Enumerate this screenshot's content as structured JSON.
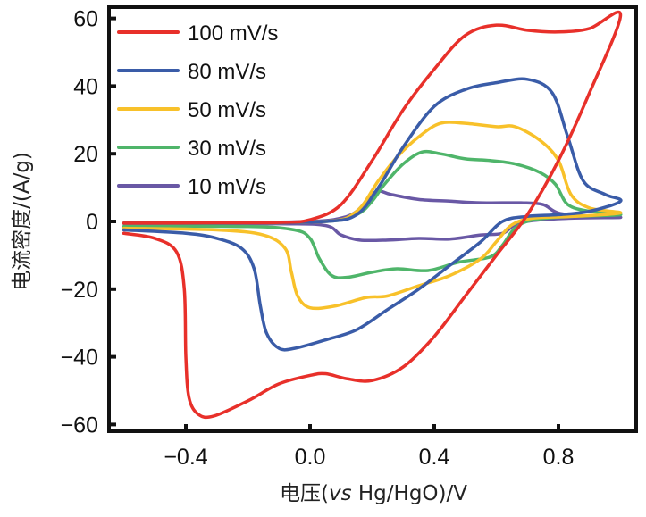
{
  "chart_data": {
    "type": "line",
    "title": "",
    "xlabel_parts": [
      "电压(",
      "vs",
      " Hg/HgO)/V"
    ],
    "xlabel": "电压(vs Hg/HgO)/V",
    "ylabel": "电流密度/(A/g)",
    "xlim": [
      -0.63,
      1.05
    ],
    "ylim": [
      -62,
      63
    ],
    "xticks": [
      -0.4,
      0.0,
      0.4,
      0.8
    ],
    "xtick_labels": [
      "−0.4",
      "0.0",
      "0.4",
      "0.8"
    ],
    "yticks": [
      -60,
      -40,
      -20,
      0,
      20,
      40,
      60
    ],
    "ytick_labels": [
      "−60",
      "−40",
      "−20",
      "0",
      "20",
      "40",
      "60"
    ],
    "grid": false,
    "legend_position": "top-left",
    "series": [
      {
        "name": "100 mV/s",
        "color": "#e8302a",
        "points": [
          [
            -0.6,
            -3.5
          ],
          [
            -0.5,
            -5
          ],
          [
            -0.43,
            -9
          ],
          [
            -0.405,
            -20
          ],
          [
            -0.4,
            -40
          ],
          [
            -0.39,
            -52
          ],
          [
            -0.36,
            -57
          ],
          [
            -0.31,
            -57.5
          ],
          [
            -0.2,
            -53
          ],
          [
            -0.1,
            -48
          ],
          [
            0.0,
            -45.5
          ],
          [
            0.05,
            -45
          ],
          [
            0.12,
            -46.5
          ],
          [
            0.2,
            -47
          ],
          [
            0.3,
            -43
          ],
          [
            0.4,
            -34
          ],
          [
            0.5,
            -22
          ],
          [
            0.6,
            -10
          ],
          [
            0.7,
            2
          ],
          [
            0.8,
            18
          ],
          [
            0.9,
            38
          ],
          [
            1.0,
            61
          ],
          [
            0.9,
            57
          ],
          [
            0.8,
            56
          ],
          [
            0.7,
            56.5
          ],
          [
            0.6,
            58
          ],
          [
            0.5,
            55
          ],
          [
            0.4,
            45
          ],
          [
            0.3,
            33
          ],
          [
            0.2,
            18
          ],
          [
            0.1,
            5
          ],
          [
            0.0,
            0.5
          ],
          [
            -0.1,
            -0.3
          ],
          [
            -0.3,
            -0.4
          ],
          [
            -0.6,
            -0.5
          ]
        ]
      },
      {
        "name": "80 mV/s",
        "color": "#3a5ca8",
        "points": [
          [
            -0.6,
            -2.5
          ],
          [
            -0.4,
            -3.5
          ],
          [
            -0.3,
            -5
          ],
          [
            -0.22,
            -8
          ],
          [
            -0.18,
            -14
          ],
          [
            -0.16,
            -25
          ],
          [
            -0.14,
            -33
          ],
          [
            -0.1,
            -37.5
          ],
          [
            -0.05,
            -37.5
          ],
          [
            0.05,
            -35
          ],
          [
            0.15,
            -32
          ],
          [
            0.25,
            -26
          ],
          [
            0.35,
            -20
          ],
          [
            0.45,
            -13
          ],
          [
            0.55,
            -6
          ],
          [
            0.62,
            0
          ],
          [
            0.7,
            1.5
          ],
          [
            0.8,
            2
          ],
          [
            0.9,
            3
          ],
          [
            1.0,
            6
          ],
          [
            0.95,
            8
          ],
          [
            0.88,
            12
          ],
          [
            0.83,
            25
          ],
          [
            0.78,
            38
          ],
          [
            0.7,
            42
          ],
          [
            0.6,
            41
          ],
          [
            0.5,
            39
          ],
          [
            0.4,
            34
          ],
          [
            0.3,
            22
          ],
          [
            0.22,
            10
          ],
          [
            0.15,
            2
          ],
          [
            0.05,
            0
          ],
          [
            -0.2,
            -0.4
          ],
          [
            -0.6,
            -0.5
          ]
        ]
      },
      {
        "name": "50 mV/s",
        "color": "#f8c12a",
        "points": [
          [
            -0.6,
            -2
          ],
          [
            -0.3,
            -2.5
          ],
          [
            -0.15,
            -4
          ],
          [
            -0.08,
            -8
          ],
          [
            -0.06,
            -15
          ],
          [
            -0.04,
            -22
          ],
          [
            0.0,
            -25.5
          ],
          [
            0.08,
            -25
          ],
          [
            0.18,
            -22.5
          ],
          [
            0.25,
            -22
          ],
          [
            0.35,
            -19
          ],
          [
            0.45,
            -16
          ],
          [
            0.55,
            -11
          ],
          [
            0.6,
            -6
          ],
          [
            0.65,
            -1
          ],
          [
            0.72,
            1
          ],
          [
            0.85,
            1.5
          ],
          [
            1.0,
            2.5
          ],
          [
            0.9,
            4
          ],
          [
            0.84,
            8
          ],
          [
            0.8,
            18
          ],
          [
            0.74,
            24
          ],
          [
            0.66,
            28
          ],
          [
            0.6,
            28
          ],
          [
            0.5,
            29
          ],
          [
            0.42,
            29
          ],
          [
            0.35,
            25
          ],
          [
            0.28,
            19
          ],
          [
            0.22,
            12
          ],
          [
            0.15,
            3
          ],
          [
            0.05,
            0
          ],
          [
            -0.3,
            -0.4
          ],
          [
            -0.6,
            -0.5
          ]
        ]
      },
      {
        "name": "30 mV/s",
        "color": "#4fb56a",
        "points": [
          [
            -0.6,
            -1.5
          ],
          [
            -0.2,
            -1.5
          ],
          [
            -0.05,
            -2.5
          ],
          [
            0.0,
            -5
          ],
          [
            0.03,
            -11
          ],
          [
            0.07,
            -16
          ],
          [
            0.12,
            -16.5
          ],
          [
            0.2,
            -15
          ],
          [
            0.28,
            -14
          ],
          [
            0.38,
            -14.5
          ],
          [
            0.48,
            -12
          ],
          [
            0.58,
            -10.5
          ],
          [
            0.62,
            -7
          ],
          [
            0.66,
            -2
          ],
          [
            0.72,
            0.5
          ],
          [
            0.85,
            1.5
          ],
          [
            1.0,
            2
          ],
          [
            0.9,
            3
          ],
          [
            0.83,
            5
          ],
          [
            0.79,
            11
          ],
          [
            0.74,
            14.5
          ],
          [
            0.66,
            17
          ],
          [
            0.58,
            18
          ],
          [
            0.5,
            18.5
          ],
          [
            0.42,
            20
          ],
          [
            0.36,
            20.5
          ],
          [
            0.3,
            17
          ],
          [
            0.24,
            11
          ],
          [
            0.2,
            6
          ],
          [
            0.15,
            2
          ],
          [
            0.05,
            0
          ],
          [
            -0.3,
            -0.3
          ],
          [
            -0.6,
            -0.5
          ]
        ]
      },
      {
        "name": "10 mV/s",
        "color": "#6958a5",
        "points": [
          [
            -0.6,
            -0.6
          ],
          [
            -0.1,
            -0.7
          ],
          [
            0.05,
            -1.2
          ],
          [
            0.1,
            -4
          ],
          [
            0.16,
            -5.5
          ],
          [
            0.25,
            -5.5
          ],
          [
            0.35,
            -5
          ],
          [
            0.45,
            -5.2
          ],
          [
            0.55,
            -4
          ],
          [
            0.62,
            -3.5
          ],
          [
            0.66,
            -1
          ],
          [
            0.72,
            0.3
          ],
          [
            0.85,
            1
          ],
          [
            1.0,
            1.2
          ],
          [
            0.9,
            1.5
          ],
          [
            0.8,
            2.5
          ],
          [
            0.75,
            5
          ],
          [
            0.68,
            5.5
          ],
          [
            0.55,
            5.5
          ],
          [
            0.45,
            6
          ],
          [
            0.35,
            6.5
          ],
          [
            0.26,
            8
          ],
          [
            0.22,
            9
          ],
          [
            0.19,
            7
          ],
          [
            0.15,
            3
          ],
          [
            0.1,
            1
          ],
          [
            0.0,
            0
          ],
          [
            -0.3,
            -0.4
          ],
          [
            -0.6,
            -0.5
          ]
        ]
      }
    ]
  }
}
